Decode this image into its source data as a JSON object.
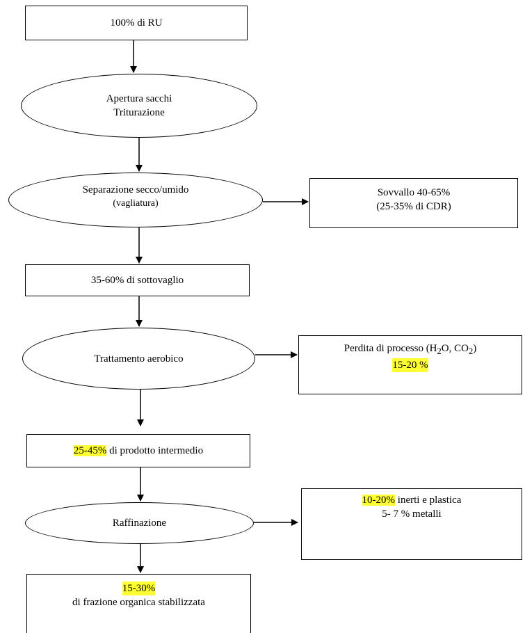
{
  "nodes": {
    "n1": {
      "text": "100% di RU"
    },
    "n2": {
      "line1": "Apertura sacchi",
      "line2": "Triturazione"
    },
    "n3": {
      "line1": "Separazione secco/umido",
      "line2": "(vagliatura)"
    },
    "n4": {
      "line1": "Sovvallo 40-65%",
      "line2": "(25-35% di CDR)"
    },
    "n5": {
      "text": "35-60% di sottovaglio"
    },
    "n6": {
      "text": "Trattamento aerobico"
    },
    "n7": {
      "line1_prefix": "Perdita di processo (H",
      "sub1": "2",
      "line1_mid": "O, CO",
      "sub2": "2",
      "line1_suffix": ")",
      "highlight": "15-20 %"
    },
    "n8": {
      "highlight": "25-45%",
      "text": " di prodotto intermedio"
    },
    "n9": {
      "text": "Raffinazione"
    },
    "n10": {
      "highlight": "10-20%",
      "line1_rest": " inerti e plastica",
      "line2": "5- 7 % metalli"
    },
    "n11": {
      "highlight": "15-30%",
      "line2": "di frazione organica stabilizzata"
    }
  },
  "colors": {
    "highlight": "#ffff33",
    "stroke": "#000000"
  }
}
